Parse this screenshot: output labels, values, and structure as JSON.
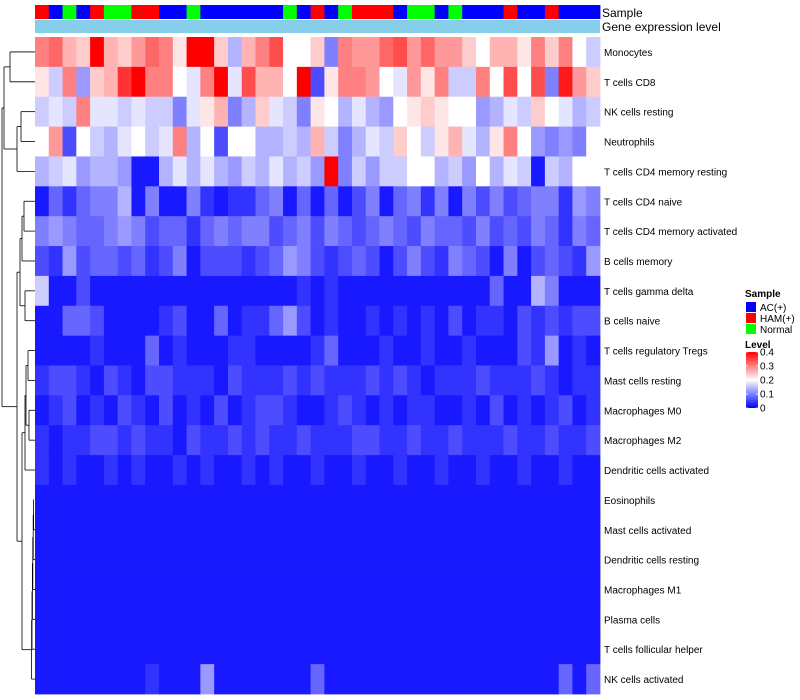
{
  "chart_data": {
    "type": "heatmap",
    "annotation_labels": [
      "Sample",
      "Gene expression level"
    ],
    "sample_groups": [
      "HAM(+)",
      "AC(+)",
      "Normal",
      "AC(+)",
      "HAM(+)",
      "Normal",
      "Normal",
      "HAM(+)",
      "HAM(+)",
      "AC(+)",
      "AC(+)",
      "Normal",
      "AC(+)",
      "AC(+)",
      "AC(+)",
      "AC(+)",
      "AC(+)",
      "AC(+)",
      "Normal",
      "AC(+)",
      "HAM(+)",
      "AC(+)",
      "Normal",
      "HAM(+)",
      "HAM(+)",
      "HAM(+)",
      "AC(+)",
      "Normal",
      "Normal",
      "AC(+)",
      "Normal",
      "AC(+)",
      "AC(+)",
      "AC(+)",
      "HAM(+)",
      "AC(+)",
      "AC(+)",
      "HAM(+)",
      "AC(+)",
      "AC(+)",
      "AC(+)"
    ],
    "rows": [
      "Monocytes",
      "T cells CD8",
      "NK cells resting",
      "Neutrophils",
      "T cells CD4 memory resting",
      "T cells CD4 naive",
      "T cells CD4 memory activated",
      "B cells memory",
      "T cells gamma delta",
      "B cells naive",
      "T cells regulatory  Tregs",
      "Mast cells resting",
      "Macrophages M0",
      "Macrophages M2",
      "Dendritic cells activated",
      "Eosinophils",
      "Mast cells activated",
      "Dendritic cells resting",
      "Macrophages M1",
      "Plasma cells",
      "T cells follicular helper",
      "NK cells activated"
    ],
    "values": [
      [
        0.3,
        0.32,
        0.26,
        0.24,
        0.4,
        0.26,
        0.24,
        0.28,
        0.32,
        0.3,
        0.22,
        0.4,
        0.4,
        0.24,
        0.14,
        0.26,
        0.3,
        0.34,
        0.2,
        0.2,
        0.24,
        0.1,
        0.3,
        0.28,
        0.28,
        0.32,
        0.34,
        0.28,
        0.32,
        0.28,
        0.28,
        0.24,
        0.2,
        0.26,
        0.26,
        0.22,
        0.3,
        0.24,
        0.3,
        0.2,
        0.16
      ],
      [
        0.22,
        0.16,
        0.3,
        0.12,
        0.24,
        0.26,
        0.36,
        0.4,
        0.3,
        0.3,
        0.2,
        0.18,
        0.3,
        0.4,
        0.18,
        0.34,
        0.26,
        0.26,
        0.2,
        0.4,
        0.06,
        0.22,
        0.3,
        0.3,
        0.28,
        0.2,
        0.18,
        0.28,
        0.22,
        0.3,
        0.16,
        0.16,
        0.3,
        0.2,
        0.34,
        0.2,
        0.34,
        0.1,
        0.38,
        0.28,
        0.24
      ],
      [
        0.16,
        0.18,
        0.16,
        0.3,
        0.18,
        0.18,
        0.16,
        0.18,
        0.16,
        0.16,
        0.1,
        0.18,
        0.22,
        0.26,
        0.1,
        0.14,
        0.24,
        0.18,
        0.16,
        0.1,
        0.22,
        0.2,
        0.14,
        0.18,
        0.14,
        0.12,
        0.2,
        0.22,
        0.24,
        0.22,
        0.2,
        0.2,
        0.12,
        0.14,
        0.18,
        0.16,
        0.24,
        0.2,
        0.18,
        0.14,
        0.16
      ],
      [
        0.2,
        0.28,
        0.06,
        0.2,
        0.16,
        0.14,
        0.18,
        0.2,
        0.16,
        0.18,
        0.3,
        0.14,
        0.2,
        0.06,
        0.2,
        0.2,
        0.14,
        0.14,
        0.16,
        0.14,
        0.26,
        0.16,
        0.1,
        0.14,
        0.18,
        0.16,
        0.24,
        0.2,
        0.16,
        0.22,
        0.26,
        0.18,
        0.14,
        0.22,
        0.3,
        0.2,
        0.12,
        0.1,
        0.12,
        0.1,
        0.2
      ],
      [
        0.14,
        0.16,
        0.18,
        0.12,
        0.14,
        0.14,
        0.12,
        0.02,
        0.02,
        0.14,
        0.18,
        0.14,
        0.18,
        0.14,
        0.12,
        0.16,
        0.14,
        0.18,
        0.14,
        0.16,
        0.12,
        0.4,
        0.1,
        0.16,
        0.12,
        0.16,
        0.16,
        0.2,
        0.2,
        0.14,
        0.16,
        0.12,
        0.2,
        0.14,
        0.18,
        0.16,
        0.02,
        0.16,
        0.14,
        0.2,
        0.2
      ],
      [
        0.02,
        0.08,
        0.04,
        0.08,
        0.1,
        0.1,
        0.14,
        0.02,
        0.1,
        0.02,
        0.02,
        0.1,
        0.04,
        0.02,
        0.04,
        0.04,
        0.08,
        0.1,
        0.02,
        0.08,
        0.02,
        0.08,
        0.02,
        0.06,
        0.1,
        0.02,
        0.08,
        0.1,
        0.04,
        0.1,
        0.02,
        0.1,
        0.06,
        0.1,
        0.06,
        0.08,
        0.1,
        0.1,
        0.04,
        0.12,
        0.1
      ],
      [
        0.1,
        0.12,
        0.1,
        0.08,
        0.08,
        0.1,
        0.12,
        0.1,
        0.06,
        0.08,
        0.08,
        0.04,
        0.08,
        0.1,
        0.08,
        0.1,
        0.1,
        0.06,
        0.08,
        0.1,
        0.06,
        0.1,
        0.08,
        0.06,
        0.08,
        0.1,
        0.08,
        0.06,
        0.1,
        0.08,
        0.08,
        0.06,
        0.1,
        0.06,
        0.08,
        0.06,
        0.1,
        0.08,
        0.04,
        0.1,
        0.08
      ],
      [
        0.06,
        0.04,
        0.12,
        0.06,
        0.08,
        0.08,
        0.06,
        0.08,
        0.04,
        0.06,
        0.1,
        0.02,
        0.06,
        0.06,
        0.06,
        0.04,
        0.06,
        0.08,
        0.12,
        0.1,
        0.06,
        0.04,
        0.06,
        0.08,
        0.06,
        0.02,
        0.06,
        0.1,
        0.06,
        0.04,
        0.1,
        0.08,
        0.06,
        0.02,
        0.1,
        0.02,
        0.06,
        0.08,
        0.06,
        0.04,
        0.12
      ],
      [
        0.16,
        0.02,
        0.02,
        0.06,
        0.02,
        0.02,
        0.02,
        0.02,
        0.02,
        0.02,
        0.02,
        0.02,
        0.02,
        0.02,
        0.02,
        0.02,
        0.02,
        0.02,
        0.02,
        0.04,
        0.02,
        0.04,
        0.02,
        0.02,
        0.02,
        0.02,
        0.02,
        0.02,
        0.02,
        0.02,
        0.02,
        0.02,
        0.02,
        0.08,
        0.02,
        0.02,
        0.14,
        0.1,
        0.02,
        0.02,
        0.02
      ],
      [
        0.02,
        0.02,
        0.08,
        0.08,
        0.06,
        0.02,
        0.02,
        0.02,
        0.02,
        0.04,
        0.06,
        0.02,
        0.02,
        0.08,
        0.02,
        0.04,
        0.04,
        0.08,
        0.12,
        0.06,
        0.02,
        0.04,
        0.02,
        0.02,
        0.04,
        0.02,
        0.04,
        0.02,
        0.04,
        0.02,
        0.06,
        0.02,
        0.04,
        0.04,
        0.02,
        0.06,
        0.04,
        0.06,
        0.04,
        0.06,
        0.06
      ],
      [
        0.02,
        0.02,
        0.02,
        0.02,
        0.04,
        0.02,
        0.02,
        0.02,
        0.08,
        0.02,
        0.04,
        0.02,
        0.02,
        0.02,
        0.04,
        0.04,
        0.02,
        0.02,
        0.02,
        0.02,
        0.04,
        0.08,
        0.02,
        0.02,
        0.02,
        0.04,
        0.02,
        0.02,
        0.04,
        0.02,
        0.02,
        0.04,
        0.02,
        0.02,
        0.02,
        0.06,
        0.04,
        0.12,
        0.02,
        0.04,
        0.02
      ],
      [
        0.04,
        0.06,
        0.06,
        0.04,
        0.02,
        0.06,
        0.04,
        0.02,
        0.06,
        0.06,
        0.04,
        0.04,
        0.04,
        0.02,
        0.06,
        0.04,
        0.04,
        0.04,
        0.06,
        0.04,
        0.06,
        0.04,
        0.04,
        0.04,
        0.06,
        0.04,
        0.06,
        0.04,
        0.02,
        0.04,
        0.04,
        0.04,
        0.06,
        0.04,
        0.04,
        0.04,
        0.06,
        0.04,
        0.02,
        0.04,
        0.04
      ],
      [
        0.02,
        0.04,
        0.06,
        0.02,
        0.04,
        0.02,
        0.06,
        0.04,
        0.02,
        0.06,
        0.02,
        0.04,
        0.02,
        0.06,
        0.02,
        0.04,
        0.06,
        0.06,
        0.04,
        0.02,
        0.02,
        0.04,
        0.06,
        0.04,
        0.02,
        0.04,
        0.02,
        0.04,
        0.04,
        0.02,
        0.02,
        0.04,
        0.02,
        0.06,
        0.02,
        0.04,
        0.02,
        0.04,
        0.06,
        0.02,
        0.04
      ],
      [
        0.04,
        0.02,
        0.04,
        0.04,
        0.06,
        0.06,
        0.04,
        0.06,
        0.04,
        0.04,
        0.02,
        0.06,
        0.04,
        0.04,
        0.06,
        0.04,
        0.06,
        0.04,
        0.04,
        0.06,
        0.04,
        0.04,
        0.04,
        0.06,
        0.06,
        0.04,
        0.04,
        0.06,
        0.04,
        0.04,
        0.06,
        0.04,
        0.04,
        0.04,
        0.06,
        0.04,
        0.04,
        0.06,
        0.04,
        0.04,
        0.06
      ],
      [
        0.04,
        0.02,
        0.04,
        0.02,
        0.02,
        0.04,
        0.02,
        0.04,
        0.02,
        0.02,
        0.04,
        0.02,
        0.04,
        0.02,
        0.02,
        0.04,
        0.02,
        0.04,
        0.02,
        0.02,
        0.04,
        0.02,
        0.02,
        0.04,
        0.02,
        0.02,
        0.04,
        0.02,
        0.02,
        0.04,
        0.02,
        0.02,
        0.04,
        0.02,
        0.02,
        0.04,
        0.02,
        0.02,
        0.04,
        0.02,
        0.02
      ],
      [
        0.02,
        0.02,
        0.02,
        0.02,
        0.02,
        0.02,
        0.02,
        0.02,
        0.02,
        0.02,
        0.02,
        0.02,
        0.02,
        0.02,
        0.02,
        0.02,
        0.02,
        0.02,
        0.02,
        0.02,
        0.02,
        0.02,
        0.02,
        0.02,
        0.02,
        0.02,
        0.02,
        0.02,
        0.02,
        0.02,
        0.02,
        0.02,
        0.02,
        0.02,
        0.02,
        0.02,
        0.02,
        0.02,
        0.02,
        0.02,
        0.02
      ],
      [
        0.02,
        0.02,
        0.02,
        0.02,
        0.02,
        0.02,
        0.02,
        0.02,
        0.02,
        0.02,
        0.02,
        0.02,
        0.02,
        0.02,
        0.02,
        0.02,
        0.02,
        0.02,
        0.02,
        0.02,
        0.02,
        0.02,
        0.02,
        0.02,
        0.02,
        0.02,
        0.02,
        0.02,
        0.02,
        0.02,
        0.02,
        0.02,
        0.02,
        0.02,
        0.02,
        0.02,
        0.02,
        0.02,
        0.02,
        0.02,
        0.02
      ],
      [
        0.02,
        0.02,
        0.02,
        0.02,
        0.02,
        0.02,
        0.02,
        0.02,
        0.02,
        0.02,
        0.02,
        0.02,
        0.02,
        0.02,
        0.02,
        0.02,
        0.02,
        0.02,
        0.02,
        0.02,
        0.02,
        0.02,
        0.02,
        0.02,
        0.02,
        0.02,
        0.02,
        0.02,
        0.02,
        0.02,
        0.02,
        0.02,
        0.02,
        0.02,
        0.02,
        0.02,
        0.02,
        0.02,
        0.02,
        0.02,
        0.02
      ],
      [
        0.02,
        0.02,
        0.02,
        0.02,
        0.02,
        0.02,
        0.02,
        0.02,
        0.02,
        0.02,
        0.02,
        0.02,
        0.02,
        0.02,
        0.02,
        0.02,
        0.02,
        0.02,
        0.02,
        0.02,
        0.02,
        0.02,
        0.02,
        0.02,
        0.02,
        0.02,
        0.02,
        0.02,
        0.02,
        0.02,
        0.02,
        0.02,
        0.02,
        0.02,
        0.02,
        0.02,
        0.02,
        0.02,
        0.02,
        0.02,
        0.02
      ],
      [
        0.02,
        0.02,
        0.02,
        0.02,
        0.02,
        0.02,
        0.02,
        0.02,
        0.02,
        0.02,
        0.02,
        0.02,
        0.02,
        0.02,
        0.02,
        0.02,
        0.02,
        0.02,
        0.02,
        0.02,
        0.02,
        0.02,
        0.02,
        0.02,
        0.02,
        0.02,
        0.02,
        0.02,
        0.02,
        0.02,
        0.02,
        0.02,
        0.02,
        0.02,
        0.02,
        0.02,
        0.02,
        0.02,
        0.02,
        0.02,
        0.02
      ],
      [
        0.02,
        0.02,
        0.02,
        0.02,
        0.02,
        0.02,
        0.02,
        0.02,
        0.02,
        0.02,
        0.02,
        0.02,
        0.02,
        0.02,
        0.02,
        0.02,
        0.02,
        0.02,
        0.02,
        0.02,
        0.02,
        0.02,
        0.02,
        0.02,
        0.02,
        0.02,
        0.02,
        0.02,
        0.02,
        0.02,
        0.02,
        0.02,
        0.02,
        0.02,
        0.02,
        0.02,
        0.02,
        0.02,
        0.02,
        0.02,
        0.02
      ],
      [
        0.02,
        0.02,
        0.02,
        0.02,
        0.02,
        0.02,
        0.02,
        0.02,
        0.04,
        0.02,
        0.02,
        0.02,
        0.12,
        0.02,
        0.02,
        0.02,
        0.02,
        0.02,
        0.02,
        0.02,
        0.08,
        0.02,
        0.02,
        0.02,
        0.02,
        0.02,
        0.02,
        0.02,
        0.02,
        0.02,
        0.02,
        0.02,
        0.02,
        0.02,
        0.02,
        0.02,
        0.02,
        0.02,
        0.08,
        0.02,
        0.08
      ]
    ],
    "legend": {
      "sample_title": "Sample",
      "sample_items": [
        {
          "label": "AC(+)",
          "color": "#0000FF"
        },
        {
          "label": "HAM(+)",
          "color": "#FF0000"
        },
        {
          "label": "Normal",
          "color": "#00FF00"
        }
      ],
      "level_title": "Level",
      "level_ticks": [
        "0.4",
        "0.3",
        "0.2",
        "0.1",
        "0"
      ],
      "level_range": [
        0,
        0.4
      ]
    },
    "colors": {
      "low": "#0000FF",
      "mid": "#FFFFFF",
      "high": "#FF0000",
      "expression_bar": "#87CEEB"
    }
  }
}
